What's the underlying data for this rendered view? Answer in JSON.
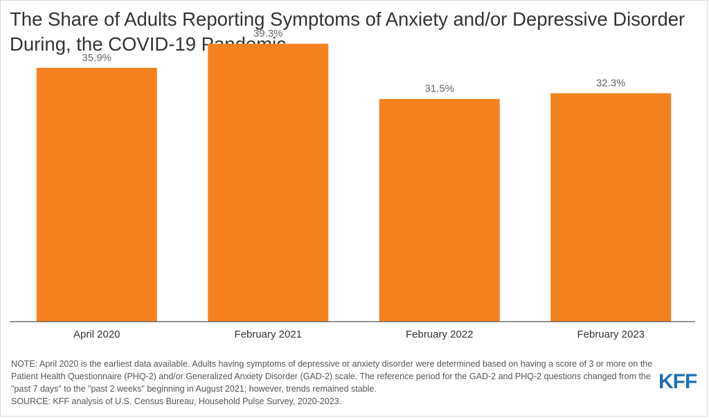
{
  "title": "The Share of Adults Reporting Symptoms of Anxiety and/or Depressive Disorder During, the COVID-19 Pandemic",
  "note": "NOTE: April 2020 is the earliest data available. Adults having symptoms of depressive or anxiety disorder were determined based on having a score of 3 or more on the Patient Health Questionnaire (PHQ-2) and/or Generalized Anxiety Disorder (GAD-2) scale. The reference period for the GAD-2 and PHQ-2 questions changed from the \"past 7 days\" to the \"past 2 weeks\" beginning in August 2021; however, trends remained stable.",
  "source": "SOURCE: KFF analysis of U.S. Census Bureau, Household Pulse Survey, 2020-2023.",
  "logo": "KFF",
  "colors": {
    "bar": "#f5821f",
    "axis": "#555555",
    "label": "#666666",
    "logo": "#1f6fb8"
  },
  "chart_data": {
    "type": "bar",
    "title": "The Share of Adults Reporting Symptoms of Anxiety and/or Depressive Disorder During, the COVID-19 Pandemic",
    "categories": [
      "April 2020",
      "February 2021",
      "February 2022",
      "February 2023"
    ],
    "values": [
      35.9,
      39.3,
      31.5,
      32.3
    ],
    "data_labels": [
      "35.9%",
      "39.3%",
      "31.5%",
      "32.3%"
    ],
    "xlabel": "",
    "ylabel": "",
    "ylim": [
      0,
      40
    ],
    "grid": false,
    "legend": "none"
  }
}
